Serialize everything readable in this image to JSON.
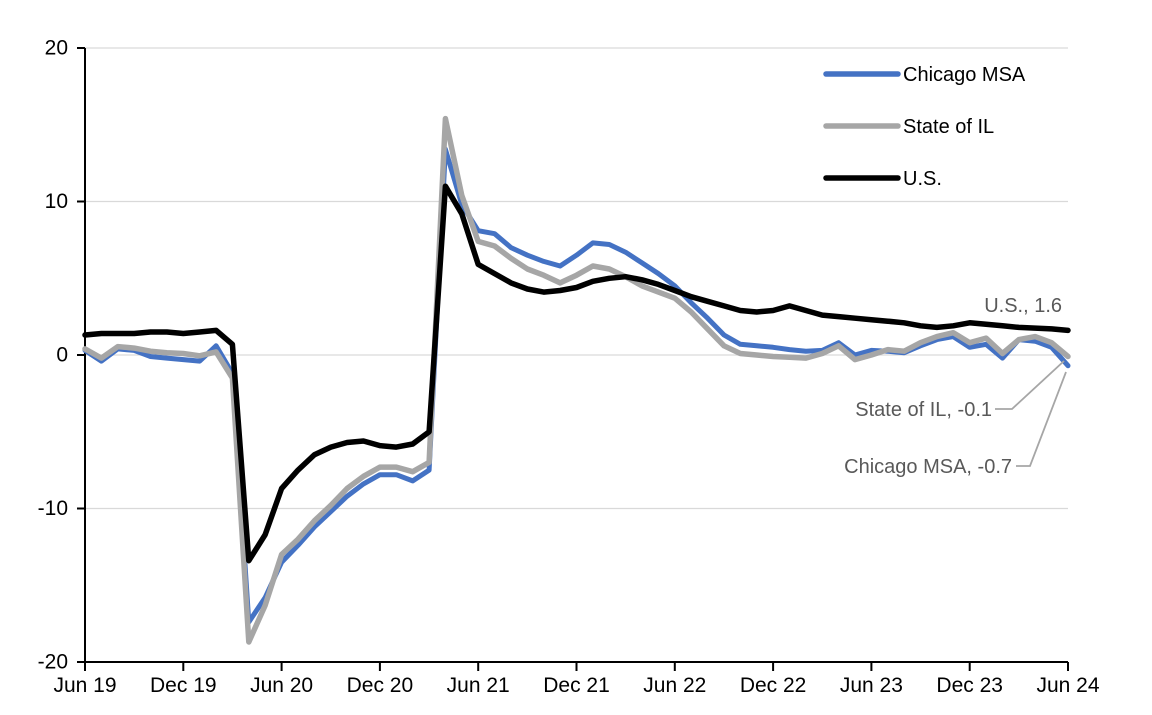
{
  "chart_data": {
    "type": "line",
    "title": "",
    "x_labels": [
      "Jun 19",
      "Jul 19",
      "Aug 19",
      "Sep 19",
      "Oct 19",
      "Nov 19",
      "Dec 19",
      "Jan 20",
      "Feb 20",
      "Mar 20",
      "Apr 20",
      "May 20",
      "Jun 20",
      "Jul 20",
      "Aug 20",
      "Sep 20",
      "Oct 20",
      "Nov 20",
      "Dec 20",
      "Jan 21",
      "Feb 21",
      "Mar 21",
      "Apr 21",
      "May 21",
      "Jun 21",
      "Jul 21",
      "Aug 21",
      "Sep 21",
      "Oct 21",
      "Nov 21",
      "Dec 21",
      "Jan 22",
      "Feb 22",
      "Mar 22",
      "Apr 22",
      "May 22",
      "Jun 22",
      "Jul 22",
      "Aug 22",
      "Sep 22",
      "Oct 22",
      "Nov 22",
      "Dec 22",
      "Jan 23",
      "Feb 23",
      "Mar 23",
      "Apr 23",
      "May 23",
      "Jun 23",
      "Jul 23",
      "Aug 23",
      "Sep 23",
      "Oct 23",
      "Nov 23",
      "Dec 23",
      "Jan 24",
      "Feb 24",
      "Mar 24",
      "Apr 24",
      "May 24",
      "Jun 24"
    ],
    "x_tick_labels": [
      "Jun 19",
      "Dec 19",
      "Jun 20",
      "Dec 20",
      "Jun 21",
      "Dec 21",
      "Jun 22",
      "Dec 22",
      "Jun 23",
      "Dec 23",
      "Jun 24"
    ],
    "x_tick_step": 6,
    "y_ticks": [
      20,
      10,
      0,
      -10,
      -20
    ],
    "ylim": [
      -20,
      20
    ],
    "grid": "horizontal",
    "legend_position": "top-right-inside",
    "series": [
      {
        "name": "Chicago MSA",
        "color": "#4472C4",
        "values": [
          0.3,
          -0.4,
          0.4,
          0.3,
          -0.1,
          -0.2,
          -0.3,
          -0.4,
          0.6,
          -1.2,
          -17.4,
          -15.8,
          -13.5,
          -12.4,
          -11.2,
          -10.2,
          -9.2,
          -8.4,
          -7.8,
          -7.8,
          -8.2,
          -7.5,
          13.4,
          9.8,
          8.1,
          7.9,
          7.0,
          6.5,
          6.1,
          5.8,
          6.5,
          7.3,
          7.2,
          6.7,
          6.0,
          5.3,
          4.5,
          3.4,
          2.4,
          1.3,
          0.7,
          0.6,
          0.5,
          0.35,
          0.25,
          0.3,
          0.8,
          0.0,
          0.3,
          0.25,
          0.15,
          0.6,
          1.0,
          1.2,
          0.5,
          0.7,
          -0.2,
          1.0,
          0.9,
          0.5,
          -0.7
        ]
      },
      {
        "name": "State of IL",
        "color": "#A6A6A6",
        "values": [
          0.4,
          -0.2,
          0.55,
          0.45,
          0.25,
          0.15,
          0.1,
          -0.05,
          0.2,
          -1.5,
          -18.7,
          -16.3,
          -13.0,
          -12.0,
          -10.8,
          -9.8,
          -8.7,
          -7.9,
          -7.3,
          -7.3,
          -7.6,
          -7.0,
          15.4,
          10.4,
          7.4,
          7.1,
          6.3,
          5.6,
          5.2,
          4.7,
          5.2,
          5.8,
          5.6,
          5.1,
          4.5,
          4.1,
          3.7,
          2.8,
          1.7,
          0.6,
          0.1,
          0.0,
          -0.1,
          -0.15,
          -0.2,
          0.1,
          0.6,
          -0.3,
          0.0,
          0.35,
          0.25,
          0.8,
          1.2,
          1.45,
          0.8,
          1.1,
          0.1,
          1.0,
          1.2,
          0.8,
          -0.1
        ]
      },
      {
        "name": "U.S.",
        "color": "#000000",
        "values": [
          1.3,
          1.4,
          1.4,
          1.4,
          1.5,
          1.5,
          1.4,
          1.5,
          1.6,
          0.7,
          -13.4,
          -11.7,
          -8.7,
          -7.5,
          -6.5,
          -6.0,
          -5.7,
          -5.6,
          -5.9,
          -6.0,
          -5.8,
          -5.0,
          11.0,
          9.2,
          5.9,
          5.3,
          4.7,
          4.3,
          4.1,
          4.2,
          4.4,
          4.8,
          5.0,
          5.1,
          4.9,
          4.6,
          4.2,
          3.8,
          3.5,
          3.2,
          2.9,
          2.8,
          2.9,
          3.2,
          2.9,
          2.6,
          2.5,
          2.4,
          2.3,
          2.2,
          2.1,
          1.9,
          1.8,
          1.9,
          2.1,
          2.0,
          1.9,
          1.8,
          1.75,
          1.7,
          1.6
        ]
      }
    ],
    "annotations": [
      {
        "label": "U.S., 1.6",
        "series": "U.S.",
        "value": 1.6
      },
      {
        "label": "State of IL, -0.1",
        "series": "State of IL",
        "value": -0.1
      },
      {
        "label": "Chicago MSA, -0.7",
        "series": "Chicago MSA",
        "value": -0.7
      }
    ],
    "colors": {
      "grid": "#D9D9D9",
      "axis": "#000000",
      "tick_text": "#000000",
      "annotation_text": "#595959",
      "leader": "#A6A6A6"
    }
  }
}
